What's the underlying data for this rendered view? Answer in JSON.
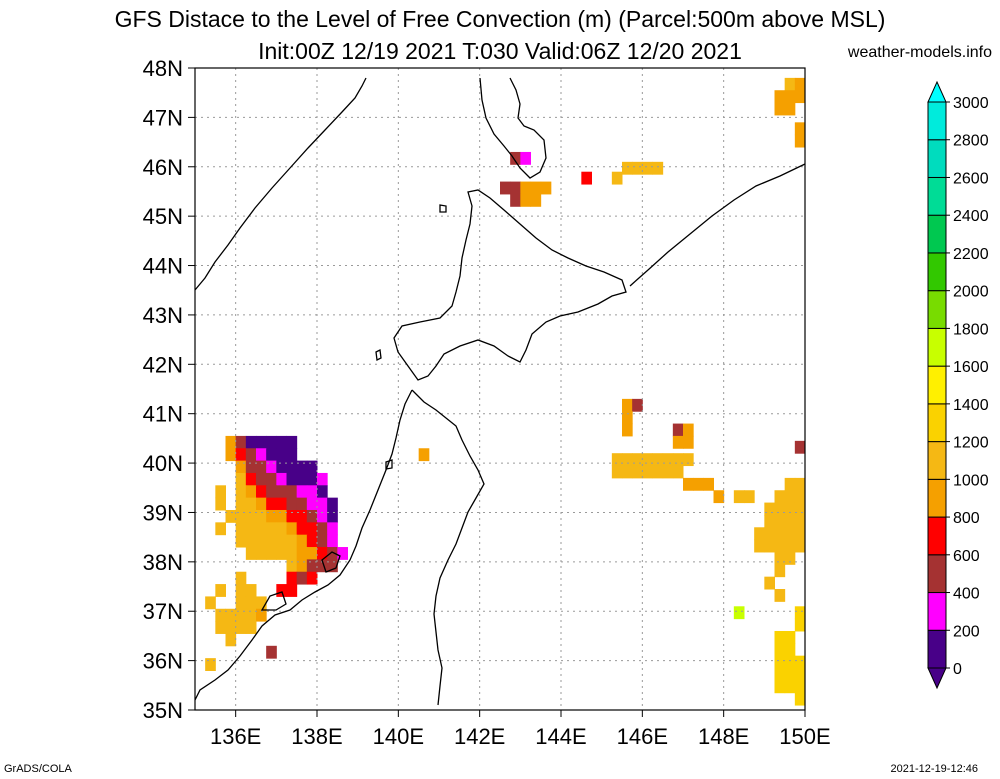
{
  "title": {
    "line1": "GFS Distace to the Level of Free Convection (m) (Parcel:500m above MSL)",
    "line2": "Init:00Z 12/19 2021 T:030 Valid:06Z 12/20 2021",
    "site": "weather-models.info"
  },
  "footer": {
    "left": "GrADS/COLA",
    "right": "2021-12-19-12:46"
  },
  "map": {
    "lon_range": [
      135,
      150
    ],
    "lat_range": [
      35,
      48
    ],
    "x_ticks": [
      "136E",
      "138E",
      "140E",
      "142E",
      "144E",
      "146E",
      "148E",
      "150E"
    ],
    "x_tick_values": [
      136,
      138,
      140,
      142,
      144,
      146,
      148,
      150
    ],
    "y_ticks": [
      "35N",
      "36N",
      "37N",
      "38N",
      "39N",
      "40N",
      "41N",
      "42N",
      "43N",
      "44N",
      "45N",
      "46N",
      "47N",
      "48N"
    ],
    "y_tick_values": [
      35,
      36,
      37,
      38,
      39,
      40,
      41,
      42,
      43,
      44,
      45,
      46,
      47,
      48
    ],
    "grid": true
  },
  "colorbar": {
    "labels": [
      "0",
      "200",
      "400",
      "600",
      "800",
      "1000",
      "1200",
      "1400",
      "1600",
      "1800",
      "2000",
      "2200",
      "2400",
      "2600",
      "2800",
      "3000"
    ],
    "colors": [
      "#480088",
      "#ff00ff",
      "#a53232",
      "#ff0000",
      "#f5a000",
      "#f5b814",
      "#fad200",
      "#fff000",
      "#c8ff00",
      "#78dc00",
      "#32c800",
      "#00c850",
      "#00dc96",
      "#00dcbe",
      "#00ebdc",
      "#00ffff"
    ]
  },
  "chart_data": {
    "type": "heatmap",
    "title": "GFS Distace to the Level of Free Convection (m) (Parcel:500m above MSL)",
    "units": "m",
    "cell_size_deg": 0.25,
    "cells": [
      {
        "lon": 135.75,
        "lat": 40.3,
        "v": 900
      },
      {
        "lon": 136.0,
        "lat": 40.3,
        "v": 500
      },
      {
        "lon": 136.25,
        "lat": 40.3,
        "v": 100
      },
      {
        "lon": 136.5,
        "lat": 40.3,
        "v": 100
      },
      {
        "lon": 136.75,
        "lat": 40.3,
        "v": 100
      },
      {
        "lon": 137.0,
        "lat": 40.3,
        "v": 100
      },
      {
        "lon": 137.25,
        "lat": 40.3,
        "v": 100
      },
      {
        "lon": 135.75,
        "lat": 40.05,
        "v": 900
      },
      {
        "lon": 136.0,
        "lat": 40.05,
        "v": 700
      },
      {
        "lon": 136.25,
        "lat": 40.05,
        "v": 500
      },
      {
        "lon": 136.5,
        "lat": 40.05,
        "v": 200
      },
      {
        "lon": 136.75,
        "lat": 40.05,
        "v": 100
      },
      {
        "lon": 137.0,
        "lat": 40.05,
        "v": 100
      },
      {
        "lon": 137.25,
        "lat": 40.05,
        "v": 100
      },
      {
        "lon": 136.0,
        "lat": 39.8,
        "v": 900
      },
      {
        "lon": 136.25,
        "lat": 39.8,
        "v": 500
      },
      {
        "lon": 136.5,
        "lat": 39.8,
        "v": 400
      },
      {
        "lon": 136.75,
        "lat": 39.8,
        "v": 300
      },
      {
        "lon": 137.0,
        "lat": 39.8,
        "v": 100
      },
      {
        "lon": 137.25,
        "lat": 39.8,
        "v": 100
      },
      {
        "lon": 137.5,
        "lat": 39.8,
        "v": 100
      },
      {
        "lon": 137.75,
        "lat": 39.8,
        "v": 100
      },
      {
        "lon": 136.0,
        "lat": 39.55,
        "v": 1000
      },
      {
        "lon": 136.25,
        "lat": 39.55,
        "v": 700
      },
      {
        "lon": 136.5,
        "lat": 39.55,
        "v": 500
      },
      {
        "lon": 136.75,
        "lat": 39.55,
        "v": 500
      },
      {
        "lon": 137.0,
        "lat": 39.55,
        "v": 300
      },
      {
        "lon": 137.25,
        "lat": 39.55,
        "v": 100
      },
      {
        "lon": 137.5,
        "lat": 39.55,
        "v": 100
      },
      {
        "lon": 137.75,
        "lat": 39.55,
        "v": 100
      },
      {
        "lon": 138.0,
        "lat": 39.55,
        "v": 200
      },
      {
        "lon": 135.5,
        "lat": 39.3,
        "v": 1000
      },
      {
        "lon": 136.0,
        "lat": 39.3,
        "v": 1000
      },
      {
        "lon": 136.25,
        "lat": 39.3,
        "v": 900
      },
      {
        "lon": 136.5,
        "lat": 39.3,
        "v": 700
      },
      {
        "lon": 136.75,
        "lat": 39.3,
        "v": 500
      },
      {
        "lon": 137.0,
        "lat": 39.3,
        "v": 500
      },
      {
        "lon": 137.25,
        "lat": 39.3,
        "v": 500
      },
      {
        "lon": 137.5,
        "lat": 39.3,
        "v": 300
      },
      {
        "lon": 137.75,
        "lat": 39.3,
        "v": 300
      },
      {
        "lon": 138.0,
        "lat": 39.3,
        "v": 100
      },
      {
        "lon": 135.5,
        "lat": 39.05,
        "v": 1000
      },
      {
        "lon": 136.0,
        "lat": 39.05,
        "v": 1000
      },
      {
        "lon": 136.25,
        "lat": 39.05,
        "v": 1000
      },
      {
        "lon": 136.5,
        "lat": 39.05,
        "v": 900
      },
      {
        "lon": 136.75,
        "lat": 39.05,
        "v": 700
      },
      {
        "lon": 137.0,
        "lat": 39.05,
        "v": 700
      },
      {
        "lon": 137.25,
        "lat": 39.05,
        "v": 500
      },
      {
        "lon": 137.5,
        "lat": 39.05,
        "v": 500
      },
      {
        "lon": 137.75,
        "lat": 39.05,
        "v": 300
      },
      {
        "lon": 138.0,
        "lat": 39.05,
        "v": 300
      },
      {
        "lon": 138.25,
        "lat": 39.05,
        "v": 100
      },
      {
        "lon": 135.75,
        "lat": 38.8,
        "v": 1000
      },
      {
        "lon": 136.0,
        "lat": 38.8,
        "v": 1000
      },
      {
        "lon": 136.25,
        "lat": 38.8,
        "v": 1000
      },
      {
        "lon": 136.5,
        "lat": 38.8,
        "v": 1000
      },
      {
        "lon": 136.75,
        "lat": 38.8,
        "v": 900
      },
      {
        "lon": 137.0,
        "lat": 38.8,
        "v": 900
      },
      {
        "lon": 137.25,
        "lat": 38.8,
        "v": 700
      },
      {
        "lon": 137.5,
        "lat": 38.8,
        "v": 700
      },
      {
        "lon": 137.75,
        "lat": 38.8,
        "v": 500
      },
      {
        "lon": 138.0,
        "lat": 38.8,
        "v": 300
      },
      {
        "lon": 138.25,
        "lat": 38.8,
        "v": 100
      },
      {
        "lon": 135.5,
        "lat": 38.55,
        "v": 1000
      },
      {
        "lon": 136.0,
        "lat": 38.55,
        "v": 1000
      },
      {
        "lon": 136.25,
        "lat": 38.55,
        "v": 1000
      },
      {
        "lon": 136.5,
        "lat": 38.55,
        "v": 1000
      },
      {
        "lon": 136.75,
        "lat": 38.55,
        "v": 1000
      },
      {
        "lon": 137.0,
        "lat": 38.55,
        "v": 1000
      },
      {
        "lon": 137.25,
        "lat": 38.55,
        "v": 900
      },
      {
        "lon": 137.5,
        "lat": 38.55,
        "v": 700
      },
      {
        "lon": 137.75,
        "lat": 38.55,
        "v": 700
      },
      {
        "lon": 138.0,
        "lat": 38.55,
        "v": 500
      },
      {
        "lon": 138.25,
        "lat": 38.55,
        "v": 300
      },
      {
        "lon": 136.0,
        "lat": 38.3,
        "v": 1000
      },
      {
        "lon": 136.25,
        "lat": 38.3,
        "v": 1000
      },
      {
        "lon": 136.5,
        "lat": 38.3,
        "v": 1000
      },
      {
        "lon": 136.75,
        "lat": 38.3,
        "v": 1000
      },
      {
        "lon": 137.0,
        "lat": 38.3,
        "v": 1000
      },
      {
        "lon": 137.25,
        "lat": 38.3,
        "v": 1000
      },
      {
        "lon": 137.5,
        "lat": 38.3,
        "v": 900
      },
      {
        "lon": 137.75,
        "lat": 38.3,
        "v": 700
      },
      {
        "lon": 138.0,
        "lat": 38.3,
        "v": 500
      },
      {
        "lon": 138.25,
        "lat": 38.3,
        "v": 300
      },
      {
        "lon": 136.25,
        "lat": 38.05,
        "v": 1000
      },
      {
        "lon": 136.5,
        "lat": 38.05,
        "v": 1000
      },
      {
        "lon": 136.75,
        "lat": 38.05,
        "v": 1000
      },
      {
        "lon": 137.0,
        "lat": 38.05,
        "v": 1000
      },
      {
        "lon": 137.25,
        "lat": 38.05,
        "v": 1000
      },
      {
        "lon": 137.5,
        "lat": 38.05,
        "v": 900
      },
      {
        "lon": 137.75,
        "lat": 38.05,
        "v": 900
      },
      {
        "lon": 138.0,
        "lat": 38.05,
        "v": 700
      },
      {
        "lon": 138.25,
        "lat": 38.05,
        "v": 500
      },
      {
        "lon": 138.5,
        "lat": 38.05,
        "v": 300
      },
      {
        "lon": 137.25,
        "lat": 37.8,
        "v": 1000
      },
      {
        "lon": 137.5,
        "lat": 37.8,
        "v": 900
      },
      {
        "lon": 137.75,
        "lat": 37.8,
        "v": 500
      },
      {
        "lon": 138.0,
        "lat": 37.8,
        "v": 500
      },
      {
        "lon": 138.25,
        "lat": 37.8,
        "v": 500
      },
      {
        "lon": 136.0,
        "lat": 37.55,
        "v": 1000
      },
      {
        "lon": 137.25,
        "lat": 37.55,
        "v": 700
      },
      {
        "lon": 137.5,
        "lat": 37.55,
        "v": 500
      },
      {
        "lon": 137.75,
        "lat": 37.55,
        "v": 700
      },
      {
        "lon": 135.5,
        "lat": 37.3,
        "v": 1000
      },
      {
        "lon": 136.0,
        "lat": 37.3,
        "v": 1000
      },
      {
        "lon": 136.25,
        "lat": 37.3,
        "v": 1000
      },
      {
        "lon": 137.0,
        "lat": 37.3,
        "v": 700
      },
      {
        "lon": 137.25,
        "lat": 37.3,
        "v": 700
      },
      {
        "lon": 135.25,
        "lat": 37.05,
        "v": 1000
      },
      {
        "lon": 136.0,
        "lat": 37.05,
        "v": 1000
      },
      {
        "lon": 136.25,
        "lat": 37.05,
        "v": 1000
      },
      {
        "lon": 136.5,
        "lat": 37.05,
        "v": 1000
      },
      {
        "lon": 135.5,
        "lat": 36.8,
        "v": 1000
      },
      {
        "lon": 135.75,
        "lat": 36.8,
        "v": 1000
      },
      {
        "lon": 136.0,
        "lat": 36.8,
        "v": 1000
      },
      {
        "lon": 136.25,
        "lat": 36.8,
        "v": 1000
      },
      {
        "lon": 136.5,
        "lat": 36.8,
        "v": 900
      },
      {
        "lon": 135.5,
        "lat": 36.55,
        "v": 1000
      },
      {
        "lon": 135.75,
        "lat": 36.55,
        "v": 1000
      },
      {
        "lon": 136.0,
        "lat": 36.55,
        "v": 1000
      },
      {
        "lon": 136.25,
        "lat": 36.55,
        "v": 1000
      },
      {
        "lon": 135.75,
        "lat": 36.3,
        "v": 1000
      },
      {
        "lon": 136.75,
        "lat": 36.05,
        "v": 500
      },
      {
        "lon": 135.25,
        "lat": 35.8,
        "v": 1000
      },
      {
        "lon": 140.5,
        "lat": 40.05,
        "v": 900
      },
      {
        "lon": 142.75,
        "lat": 46.05,
        "v": 500
      },
      {
        "lon": 143.0,
        "lat": 46.05,
        "v": 300
      },
      {
        "lon": 142.5,
        "lat": 45.45,
        "v": 500
      },
      {
        "lon": 142.75,
        "lat": 45.45,
        "v": 500
      },
      {
        "lon": 143.0,
        "lat": 45.45,
        "v": 900
      },
      {
        "lon": 143.25,
        "lat": 45.45,
        "v": 900
      },
      {
        "lon": 143.5,
        "lat": 45.45,
        "v": 900
      },
      {
        "lon": 142.75,
        "lat": 45.2,
        "v": 500
      },
      {
        "lon": 143.0,
        "lat": 45.2,
        "v": 900
      },
      {
        "lon": 143.25,
        "lat": 45.2,
        "v": 900
      },
      {
        "lon": 144.5,
        "lat": 45.65,
        "v": 700
      },
      {
        "lon": 145.25,
        "lat": 45.65,
        "v": 1000
      },
      {
        "lon": 145.5,
        "lat": 45.85,
        "v": 1100
      },
      {
        "lon": 145.75,
        "lat": 45.85,
        "v": 1100
      },
      {
        "lon": 146.0,
        "lat": 45.85,
        "v": 1100
      },
      {
        "lon": 146.25,
        "lat": 45.85,
        "v": 1100
      },
      {
        "lon": 145.5,
        "lat": 41.05,
        "v": 900
      },
      {
        "lon": 145.75,
        "lat": 41.05,
        "v": 500
      },
      {
        "lon": 145.5,
        "lat": 40.8,
        "v": 900
      },
      {
        "lon": 145.5,
        "lat": 40.55,
        "v": 900
      },
      {
        "lon": 146.75,
        "lat": 40.55,
        "v": 500
      },
      {
        "lon": 147.0,
        "lat": 40.55,
        "v": 900
      },
      {
        "lon": 146.75,
        "lat": 40.3,
        "v": 900
      },
      {
        "lon": 147.0,
        "lat": 40.3,
        "v": 900
      },
      {
        "lon": 145.25,
        "lat": 39.95,
        "v": 1000
      },
      {
        "lon": 145.5,
        "lat": 39.95,
        "v": 1000
      },
      {
        "lon": 145.75,
        "lat": 39.95,
        "v": 1000
      },
      {
        "lon": 146.0,
        "lat": 39.95,
        "v": 1000
      },
      {
        "lon": 146.25,
        "lat": 39.95,
        "v": 1000
      },
      {
        "lon": 146.5,
        "lat": 39.95,
        "v": 1000
      },
      {
        "lon": 146.75,
        "lat": 39.95,
        "v": 1000
      },
      {
        "lon": 147.0,
        "lat": 39.95,
        "v": 1000
      },
      {
        "lon": 145.25,
        "lat": 39.7,
        "v": 1000
      },
      {
        "lon": 145.5,
        "lat": 39.7,
        "v": 1000
      },
      {
        "lon": 145.75,
        "lat": 39.7,
        "v": 1000
      },
      {
        "lon": 146.0,
        "lat": 39.7,
        "v": 1000
      },
      {
        "lon": 146.25,
        "lat": 39.7,
        "v": 1000
      },
      {
        "lon": 146.5,
        "lat": 39.7,
        "v": 1000
      },
      {
        "lon": 146.75,
        "lat": 39.7,
        "v": 1000
      },
      {
        "lon": 147.0,
        "lat": 39.45,
        "v": 900
      },
      {
        "lon": 147.25,
        "lat": 39.45,
        "v": 900
      },
      {
        "lon": 147.5,
        "lat": 39.45,
        "v": 900
      },
      {
        "lon": 147.75,
        "lat": 39.2,
        "v": 900
      },
      {
        "lon": 148.25,
        "lat": 39.2,
        "v": 1000
      },
      {
        "lon": 148.5,
        "lat": 39.2,
        "v": 1000
      },
      {
        "lon": 149.5,
        "lat": 47.55,
        "v": 1000
      },
      {
        "lon": 149.75,
        "lat": 47.55,
        "v": 900
      },
      {
        "lon": 149.25,
        "lat": 47.3,
        "v": 900
      },
      {
        "lon": 149.5,
        "lat": 47.3,
        "v": 900
      },
      {
        "lon": 149.75,
        "lat": 47.3,
        "v": 900
      },
      {
        "lon": 149.25,
        "lat": 47.05,
        "v": 900
      },
      {
        "lon": 149.5,
        "lat": 47.05,
        "v": 900
      },
      {
        "lon": 149.75,
        "lat": 46.65,
        "v": 900
      },
      {
        "lon": 149.75,
        "lat": 46.4,
        "v": 900
      },
      {
        "lon": 149.75,
        "lat": 40.2,
        "v": 500
      },
      {
        "lon": 149.5,
        "lat": 39.45,
        "v": 1000
      },
      {
        "lon": 149.75,
        "lat": 39.45,
        "v": 1000
      },
      {
        "lon": 149.25,
        "lat": 39.2,
        "v": 1000
      },
      {
        "lon": 149.5,
        "lat": 39.2,
        "v": 1000
      },
      {
        "lon": 149.75,
        "lat": 39.2,
        "v": 1000
      },
      {
        "lon": 149.0,
        "lat": 38.95,
        "v": 1000
      },
      {
        "lon": 149.25,
        "lat": 38.95,
        "v": 1000
      },
      {
        "lon": 149.5,
        "lat": 38.95,
        "v": 1000
      },
      {
        "lon": 149.75,
        "lat": 38.95,
        "v": 1000
      },
      {
        "lon": 149.0,
        "lat": 38.7,
        "v": 1000
      },
      {
        "lon": 149.25,
        "lat": 38.7,
        "v": 1000
      },
      {
        "lon": 149.5,
        "lat": 38.7,
        "v": 1000
      },
      {
        "lon": 149.75,
        "lat": 38.7,
        "v": 1000
      },
      {
        "lon": 148.75,
        "lat": 38.45,
        "v": 1000
      },
      {
        "lon": 149.0,
        "lat": 38.45,
        "v": 1000
      },
      {
        "lon": 149.25,
        "lat": 38.45,
        "v": 1000
      },
      {
        "lon": 149.5,
        "lat": 38.45,
        "v": 1000
      },
      {
        "lon": 149.75,
        "lat": 38.45,
        "v": 1000
      },
      {
        "lon": 148.75,
        "lat": 38.2,
        "v": 1000
      },
      {
        "lon": 149.0,
        "lat": 38.2,
        "v": 1000
      },
      {
        "lon": 149.25,
        "lat": 38.2,
        "v": 1000
      },
      {
        "lon": 149.5,
        "lat": 38.2,
        "v": 1000
      },
      {
        "lon": 149.75,
        "lat": 38.2,
        "v": 1000
      },
      {
        "lon": 149.25,
        "lat": 37.95,
        "v": 1000
      },
      {
        "lon": 149.5,
        "lat": 37.95,
        "v": 1000
      },
      {
        "lon": 149.25,
        "lat": 37.7,
        "v": 1000
      },
      {
        "lon": 149.0,
        "lat": 37.45,
        "v": 1000
      },
      {
        "lon": 149.25,
        "lat": 37.2,
        "v": 1000
      },
      {
        "lon": 148.25,
        "lat": 36.85,
        "v": 1700
      },
      {
        "lon": 149.75,
        "lat": 36.85,
        "v": 1200
      },
      {
        "lon": 149.75,
        "lat": 36.6,
        "v": 1200
      },
      {
        "lon": 149.25,
        "lat": 36.35,
        "v": 1200
      },
      {
        "lon": 149.5,
        "lat": 36.35,
        "v": 1200
      },
      {
        "lon": 149.25,
        "lat": 36.1,
        "v": 1200
      },
      {
        "lon": 149.5,
        "lat": 36.1,
        "v": 1200
      },
      {
        "lon": 149.25,
        "lat": 35.85,
        "v": 1200
      },
      {
        "lon": 149.5,
        "lat": 35.85,
        "v": 1200
      },
      {
        "lon": 149.75,
        "lat": 35.85,
        "v": 1200
      },
      {
        "lon": 149.25,
        "lat": 35.6,
        "v": 1200
      },
      {
        "lon": 149.5,
        "lat": 35.6,
        "v": 1200
      },
      {
        "lon": 149.75,
        "lat": 35.6,
        "v": 1200
      },
      {
        "lon": 149.25,
        "lat": 35.35,
        "v": 1200
      },
      {
        "lon": 149.5,
        "lat": 35.35,
        "v": 1200
      },
      {
        "lon": 149.75,
        "lat": 35.35,
        "v": 1200
      },
      {
        "lon": 149.75,
        "lat": 35.1,
        "v": 1200
      }
    ]
  }
}
